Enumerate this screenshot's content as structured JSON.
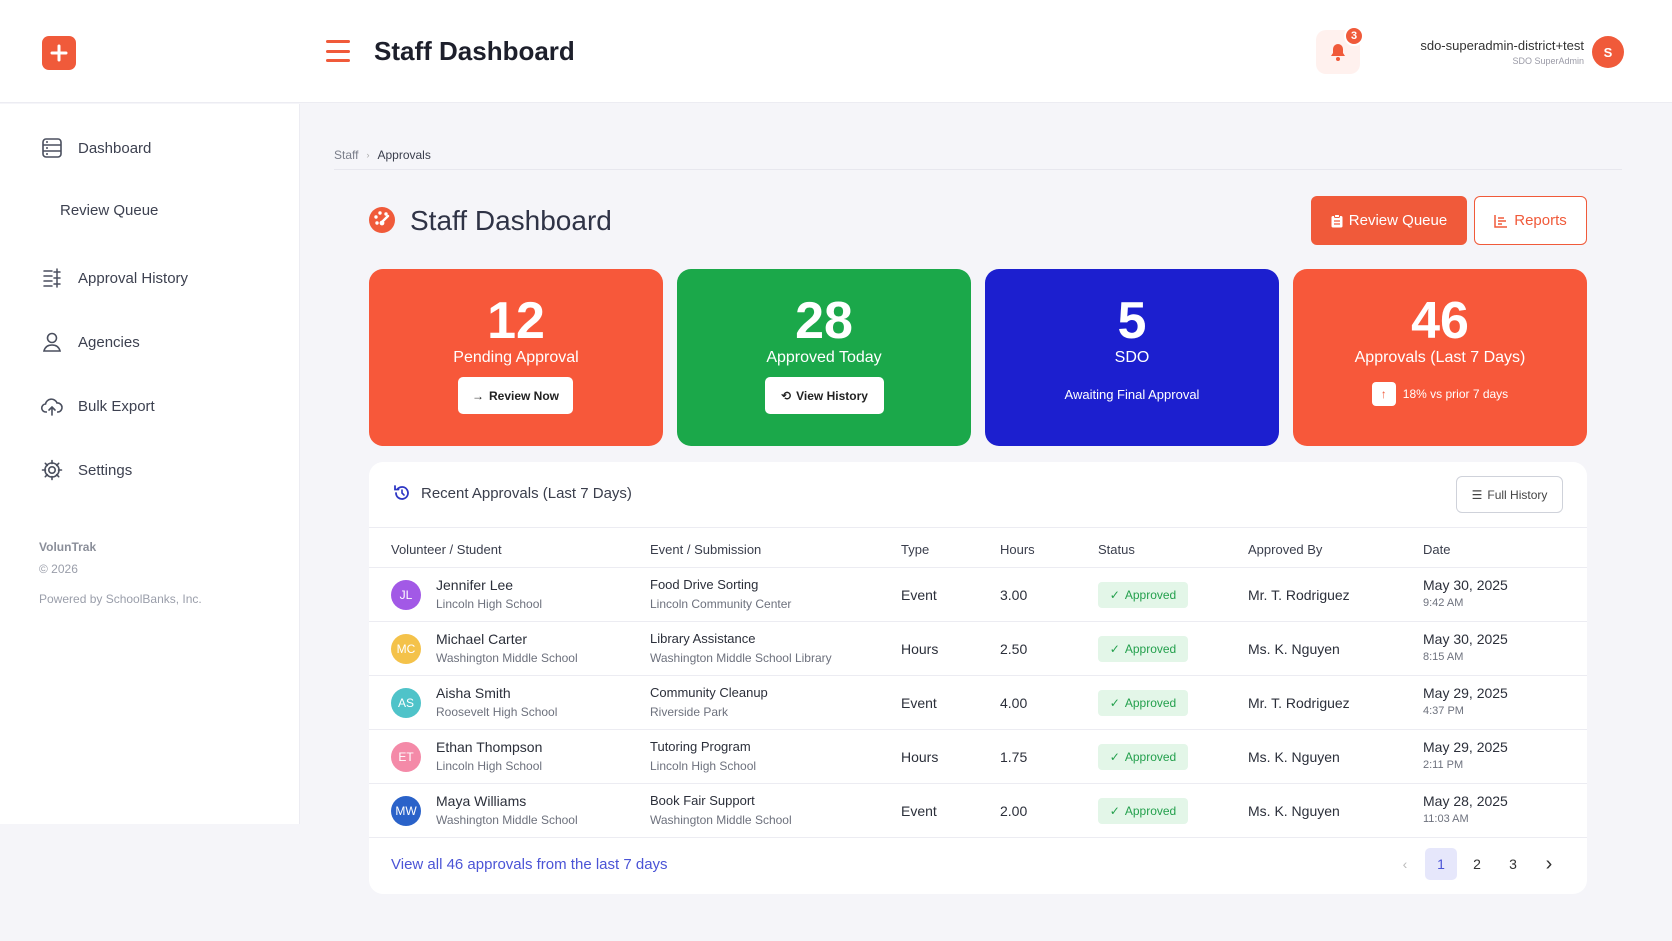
{
  "header": {
    "title": "Staff Dashboard",
    "notification_count": "3",
    "user_name": "sdo-superadmin-district+test",
    "user_role": "SDO SuperAdmin",
    "user_initial": "S"
  },
  "sidebar": {
    "items": [
      {
        "label": "Dashboard",
        "icon": "dashboard-icon"
      },
      {
        "label": "Review Queue",
        "icon": ""
      },
      {
        "label": "Approval History",
        "icon": "history-list-icon"
      },
      {
        "label": "Agencies",
        "icon": "user-icon"
      },
      {
        "label": "Bulk Export",
        "icon": "cloud-upload-icon"
      },
      {
        "label": "Settings",
        "icon": "gear-icon"
      }
    ],
    "footer": {
      "brand": "VolunTrak",
      "copyright": "© 2026",
      "powered": "Powered by SchoolBanks, Inc."
    }
  },
  "breadcrumb": [
    "Staff",
    "Approvals"
  ],
  "page": {
    "title": "Staff Dashboard",
    "review_queue_label": "Review Queue",
    "reports_label": "Reports"
  },
  "stats": [
    {
      "value": "12",
      "label": "Pending Approval",
      "action": "Review Now",
      "color": "#f7583a"
    },
    {
      "value": "28",
      "label": "Approved Today",
      "action": "View History",
      "color": "#1ba84a"
    },
    {
      "value": "5",
      "label": "SDO",
      "sub": "Awaiting Final Approval",
      "color": "#1c1fcf"
    },
    {
      "value": "46",
      "label": "Approvals (Last 7 Days)",
      "trend": "18% vs prior 7 days",
      "color": "#f7583a"
    }
  ],
  "recent": {
    "title": "Recent Approvals (Last 7 Days)",
    "full_history_label": "Full History",
    "columns": [
      "Volunteer / Student",
      "Event / Submission",
      "Type",
      "Hours",
      "Status",
      "Approved By",
      "Date"
    ],
    "rows": [
      {
        "initials": "JL",
        "avatar_color": "#a259e6",
        "name": "Jennifer Lee",
        "school": "Lincoln High School",
        "event": "Food Drive Sorting",
        "location": "Lincoln Community Center",
        "type": "Event",
        "hours": "3.00",
        "status": "Approved",
        "approver": "Mr. T. Rodriguez",
        "date": "May 30, 2025",
        "time": "9:42 AM"
      },
      {
        "initials": "MC",
        "avatar_color": "#f4c24a",
        "name": "Michael Carter",
        "school": "Washington Middle School",
        "event": "Library Assistance",
        "location": "Washington Middle School Library",
        "type": "Hours",
        "hours": "2.50",
        "status": "Approved",
        "approver": "Ms. K. Nguyen",
        "date": "May 30, 2025",
        "time": "8:15 AM"
      },
      {
        "initials": "AS",
        "avatar_color": "#4fc3c9",
        "name": "Aisha Smith",
        "school": "Roosevelt High School",
        "event": "Community Cleanup",
        "location": "Riverside Park",
        "type": "Event",
        "hours": "4.00",
        "status": "Approved",
        "approver": "Mr. T. Rodriguez",
        "date": "May 29, 2025",
        "time": "4:37 PM"
      },
      {
        "initials": "ET",
        "avatar_color": "#f48aa8",
        "name": "Ethan Thompson",
        "school": "Lincoln High School",
        "event": "Tutoring Program",
        "location": "Lincoln High School",
        "type": "Hours",
        "hours": "1.75",
        "status": "Approved",
        "approver": "Ms. K. Nguyen",
        "date": "May 29, 2025",
        "time": "2:11 PM"
      },
      {
        "initials": "MW",
        "avatar_color": "#2a62c9",
        "name": "Maya Williams",
        "school": "Washington Middle School",
        "event": "Book Fair Support",
        "location": "Washington Middle School",
        "type": "Event",
        "hours": "2.00",
        "status": "Approved",
        "approver": "Ms. K. Nguyen",
        "date": "May 28, 2025",
        "time": "11:03 AM"
      }
    ],
    "view_all_label": "View all 46 approvals from the last 7 days",
    "pages": [
      "1",
      "2",
      "3"
    ],
    "current_page": "1"
  },
  "colors": {
    "accent": "#f05a3a",
    "success": "#1ba84a",
    "navy": "#1c1fcf",
    "link": "#4b54d6"
  }
}
